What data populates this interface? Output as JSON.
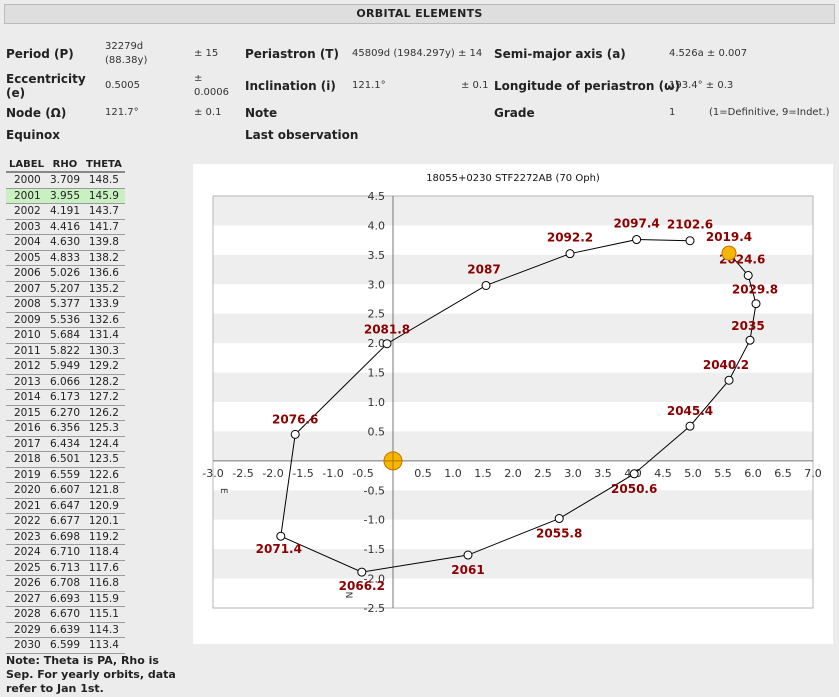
{
  "header": "ORBITAL ELEMENTS",
  "elements": {
    "period_label": "Period (P)",
    "period_value1": "32279d",
    "period_value2": "(88.38y)",
    "period_err": "± 15",
    "periastron_label": "Periastron (T)",
    "periastron_value": "45809d (1984.297y) ± 14",
    "semimajor_label": "Semi-major axis (a)",
    "semimajor_value": "4.526a ± 0.007",
    "ecc_label1": "Eccentricity",
    "ecc_label2": "(e)",
    "ecc_value": "0.5005",
    "ecc_err1": "±",
    "ecc_err2": "0.0006",
    "incl_label": "Inclination (i)",
    "incl_value": "121.1°",
    "incl_err": "± 0.1",
    "lonper_label": "Longitude of periastron (ω)",
    "lonper_value": "193.4° ± 0.3",
    "node_label": "Node (Ω)",
    "node_value": "121.7°",
    "node_err": "± 0.1",
    "note_label": "Note",
    "grade_label": "Grade",
    "grade_value": "1",
    "grade_note": "(1=Definitive, 9=Indet.)",
    "equinox_label": "Equinox",
    "lastobs_label": "Last observation"
  },
  "table": {
    "headers": [
      "LABEL",
      "RHO",
      "THETA"
    ],
    "highlight": "2001",
    "rows": [
      [
        "2000",
        "3.709",
        "148.5"
      ],
      [
        "2001",
        "3.955",
        "145.9"
      ],
      [
        "2002",
        "4.191",
        "143.7"
      ],
      [
        "2003",
        "4.416",
        "141.7"
      ],
      [
        "2004",
        "4.630",
        "139.8"
      ],
      [
        "2005",
        "4.833",
        "138.2"
      ],
      [
        "2006",
        "5.026",
        "136.6"
      ],
      [
        "2007",
        "5.207",
        "135.2"
      ],
      [
        "2008",
        "5.377",
        "133.9"
      ],
      [
        "2009",
        "5.536",
        "132.6"
      ],
      [
        "2010",
        "5.684",
        "131.4"
      ],
      [
        "2011",
        "5.822",
        "130.3"
      ],
      [
        "2012",
        "5.949",
        "129.2"
      ],
      [
        "2013",
        "6.066",
        "128.2"
      ],
      [
        "2014",
        "6.173",
        "127.2"
      ],
      [
        "2015",
        "6.270",
        "126.2"
      ],
      [
        "2016",
        "6.356",
        "125.3"
      ],
      [
        "2017",
        "6.434",
        "124.4"
      ],
      [
        "2018",
        "6.501",
        "123.5"
      ],
      [
        "2019",
        "6.559",
        "122.6"
      ],
      [
        "2020",
        "6.607",
        "121.8"
      ],
      [
        "2021",
        "6.647",
        "120.9"
      ],
      [
        "2022",
        "6.677",
        "120.1"
      ],
      [
        "2023",
        "6.698",
        "119.2"
      ],
      [
        "2024",
        "6.710",
        "118.4"
      ],
      [
        "2025",
        "6.713",
        "117.6"
      ],
      [
        "2026",
        "6.708",
        "116.8"
      ],
      [
        "2027",
        "6.693",
        "115.9"
      ],
      [
        "2028",
        "6.670",
        "115.1"
      ],
      [
        "2029",
        "6.639",
        "114.3"
      ],
      [
        "2030",
        "6.599",
        "113.4"
      ]
    ]
  },
  "note_text": "Note: Theta is PA, Rho is Sep. For yearly orbits, data refer to Jan 1st.",
  "colors": {
    "label": "#8b0000",
    "marker": "#f5b800",
    "marker_edge": "#c07000",
    "band": "#eeeeee",
    "line": "#000000"
  },
  "chart_data": {
    "type": "line",
    "title": "18055+0230 STF2272AB (70 Oph)",
    "xlim": [
      -3.0,
      7.0
    ],
    "ylim": [
      -2.5,
      4.5
    ],
    "x_ticks": [
      -3.0,
      -2.5,
      -2.0,
      -1.5,
      -1.0,
      -0.5,
      0.5,
      1.0,
      1.5,
      2.0,
      2.5,
      3.0,
      3.5,
      4.0,
      4.5,
      5.0,
      5.5,
      6.0,
      6.5,
      7.0
    ],
    "x_tick_labels": [
      "-3.0",
      "-2.5",
      "-2.0",
      "-1.5",
      "-1.0",
      "-0.5",
      "0.5",
      "1.0",
      "1.5",
      "2.0",
      "2.5",
      "3.0",
      "3.5",
      "4.0",
      "4.5",
      "5.0",
      "5.5",
      "6.0",
      "6.5",
      "7.0"
    ],
    "y_ticks": [
      4.5,
      4.0,
      3.5,
      3.0,
      2.5,
      2.0,
      1.5,
      1.0,
      0.5,
      -0.5,
      -1.0,
      -1.5,
      -2.0,
      -2.5
    ],
    "y_tick_labels": [
      "4.5",
      "4.0",
      "3.5",
      "3.0",
      "2.5",
      "2.0",
      "1.5",
      "1.0",
      "0.5",
      "-0.5",
      "-1.0",
      "-1.5",
      "-2.0",
      "-2.5"
    ],
    "axis_letters": {
      "east": "E",
      "north": "N"
    },
    "orbit": [
      {
        "label": "2102.6",
        "x": 4.95,
        "y": 3.74
      },
      {
        "label": "2097.4",
        "x": 4.06,
        "y": 3.76
      },
      {
        "label": "2092.2",
        "x": 2.95,
        "y": 3.52
      },
      {
        "label": "2087",
        "x": 1.55,
        "y": 2.98
      },
      {
        "label": "2081.8",
        "x": -0.1,
        "y": 1.99
      },
      {
        "label": "2076.6",
        "x": -1.63,
        "y": 0.45
      },
      {
        "label": "2071.4",
        "x": -1.87,
        "y": -1.28
      },
      {
        "label": "2066.2",
        "x": -0.52,
        "y": -1.89
      },
      {
        "label": "2061",
        "x": 1.25,
        "y": -1.6
      },
      {
        "label": "2055.8",
        "x": 2.77,
        "y": -0.98
      },
      {
        "label": "2050.6",
        "x": 4.02,
        "y": -0.22
      },
      {
        "label": "2045.4",
        "x": 4.95,
        "y": 0.59
      },
      {
        "label": "2040.2",
        "x": 5.6,
        "y": 1.37
      },
      {
        "label": "2035",
        "x": 5.95,
        "y": 2.05
      },
      {
        "label": "2029.8",
        "x": 6.05,
        "y": 2.67
      },
      {
        "label": "2024.6",
        "x": 5.92,
        "y": 3.15
      },
      {
        "label": "2019.4",
        "x": 5.6,
        "y": 3.53
      }
    ],
    "current": {
      "x": 5.6,
      "y": 3.53
    },
    "primary": {
      "x": 0,
      "y": 0
    }
  }
}
